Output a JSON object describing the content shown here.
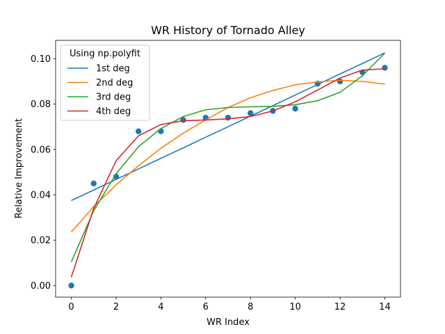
{
  "chart_data": {
    "type": "line",
    "title": "WR History of Tornado Alley",
    "xlabel": "WR Index",
    "ylabel": "Relative Improvement",
    "xlim": [
      -0.7,
      14.7
    ],
    "ylim": [
      -0.0051,
      0.1081
    ],
    "xticks": [
      0,
      2,
      4,
      6,
      8,
      10,
      12,
      14
    ],
    "yticks": [
      0.0,
      0.02,
      0.04,
      0.06,
      0.08,
      0.1
    ],
    "ytick_labels": [
      "0.00",
      "0.02",
      "0.04",
      "0.06",
      "0.08",
      "0.10"
    ],
    "grid": false,
    "legend": {
      "title": "Using np.polyfit",
      "placement": "top-left"
    },
    "scatter": {
      "color": "#1f77b4",
      "x": [
        0,
        1,
        2,
        3,
        4,
        5,
        6,
        7,
        8,
        9,
        10,
        11,
        12,
        13,
        14
      ],
      "y": [
        0.0,
        0.045,
        0.048,
        0.068,
        0.068,
        0.073,
        0.074,
        0.074,
        0.076,
        0.077,
        0.078,
        0.089,
        0.09,
        0.094,
        0.096
      ]
    },
    "series": [
      {
        "name": "1st deg",
        "color": "#1f77b4",
        "x": [
          0,
          1,
          2,
          3,
          4,
          5,
          6,
          7,
          8,
          9,
          10,
          11,
          12,
          13,
          14
        ],
        "values": [
          0.0375,
          0.0421,
          0.0468,
          0.0514,
          0.0561,
          0.0607,
          0.0654,
          0.07,
          0.0747,
          0.0793,
          0.084,
          0.0886,
          0.0933,
          0.0979,
          0.1026
        ]
      },
      {
        "name": "2nd deg",
        "color": "#ff7f0e",
        "x": [
          0,
          1,
          2,
          3,
          4,
          5,
          6,
          7,
          8,
          9,
          10,
          11,
          12,
          13,
          14
        ],
        "values": [
          0.0236,
          0.0348,
          0.0444,
          0.0528,
          0.0605,
          0.0672,
          0.073,
          0.0785,
          0.0828,
          0.086,
          0.0885,
          0.0898,
          0.0905,
          0.09,
          0.0888
        ]
      },
      {
        "name": "3rd deg",
        "color": "#2ca02c",
        "x": [
          0,
          1,
          2,
          3,
          4,
          5,
          6,
          7,
          8,
          9,
          10,
          11,
          12,
          13,
          14
        ],
        "values": [
          0.0104,
          0.033,
          0.0493,
          0.0612,
          0.0692,
          0.0745,
          0.0775,
          0.0785,
          0.0788,
          0.079,
          0.0797,
          0.0815,
          0.0852,
          0.0925,
          0.1025
        ]
      },
      {
        "name": "4th deg",
        "color": "#d62728",
        "x": [
          0,
          1,
          2,
          3,
          4,
          5,
          6,
          7,
          8,
          9,
          10,
          11,
          12,
          13,
          14
        ],
        "values": [
          0.0037,
          0.034,
          0.055,
          0.066,
          0.071,
          0.0727,
          0.073,
          0.0735,
          0.0745,
          0.077,
          0.081,
          0.0862,
          0.0915,
          0.095,
          0.0956
        ]
      }
    ]
  }
}
